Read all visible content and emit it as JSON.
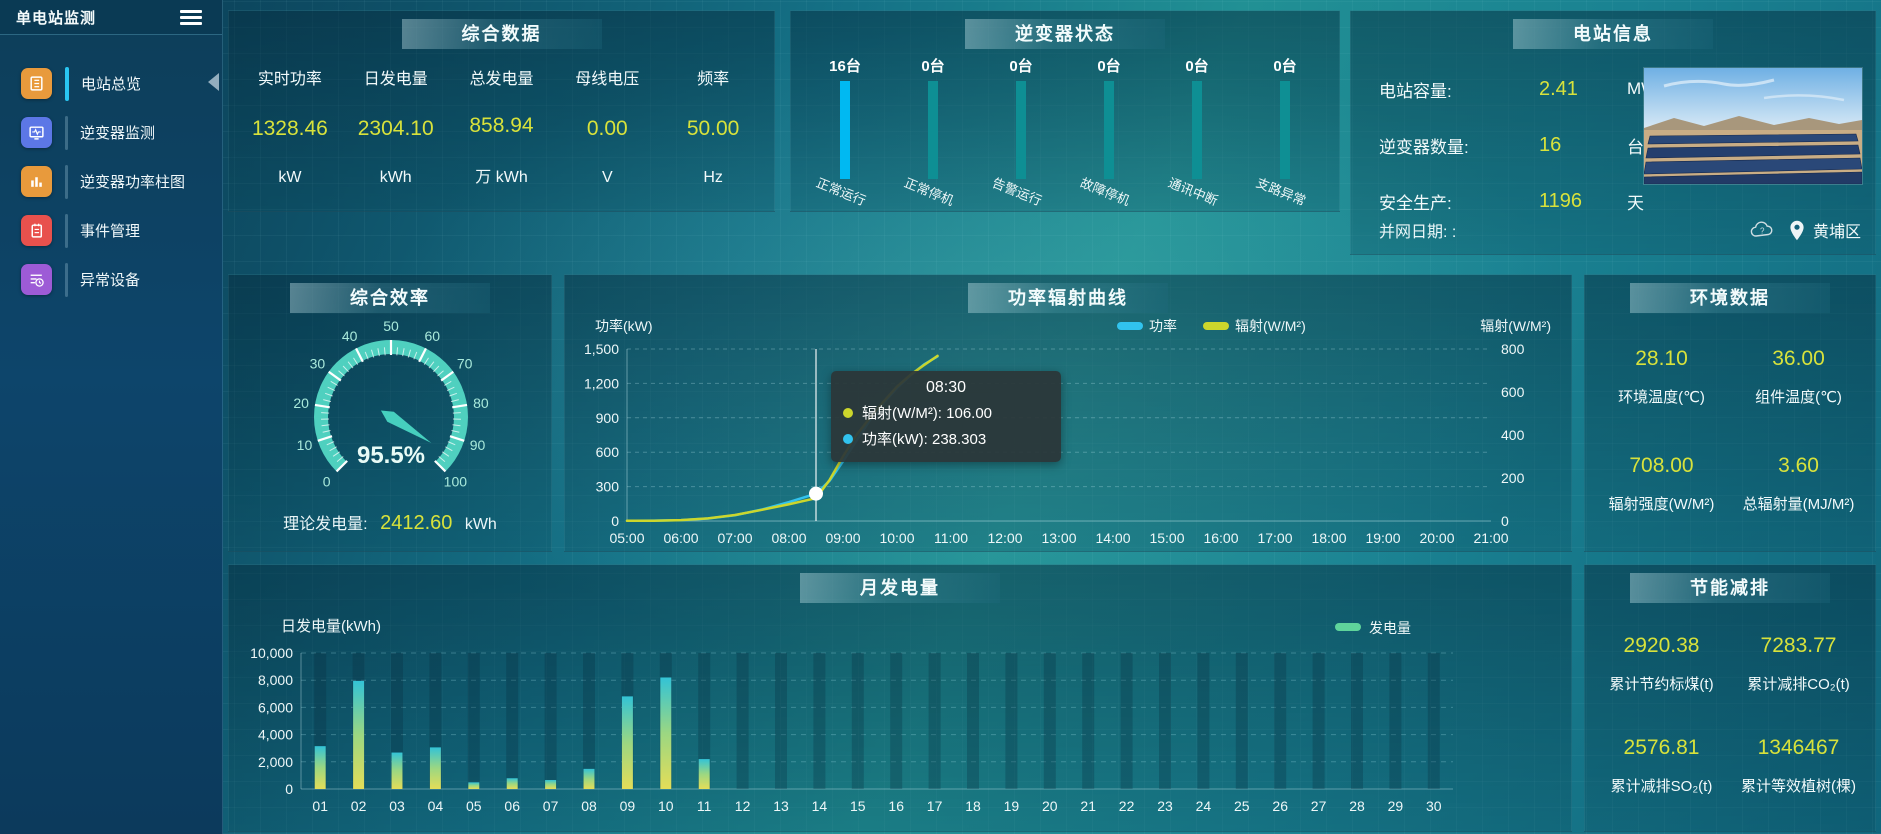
{
  "app": {
    "title": "单电站监测"
  },
  "sidebar": {
    "items": [
      {
        "label": "电站总览",
        "icon": "overview-doc",
        "color": "#e89a3c",
        "active": true
      },
      {
        "label": "逆变器监测",
        "icon": "inverter-monitor",
        "color": "#5c77e6",
        "active": false
      },
      {
        "label": "逆变器功率柱图",
        "icon": "power-bars",
        "color": "#e89a3c",
        "active": false
      },
      {
        "label": "事件管理",
        "icon": "event-notebook",
        "color": "#e8514d",
        "active": false
      },
      {
        "label": "异常设备",
        "icon": "abnormal-list",
        "color": "#9d5bd6",
        "active": false
      }
    ]
  },
  "summary": {
    "title": "综合数据",
    "metrics": [
      {
        "label": "实时功率",
        "value": "1328.46",
        "unit": "kW"
      },
      {
        "label": "日发电量",
        "value": "2304.10",
        "unit": "kWh"
      },
      {
        "label": "总发电量",
        "value": "858.94",
        "unit": "万 kWh"
      },
      {
        "label": "母线电压",
        "value": "0.00",
        "unit": "V"
      },
      {
        "label": "频率",
        "value": "50.00",
        "unit": "Hz"
      }
    ]
  },
  "inverter_status": {
    "title": "逆变器状态",
    "items": [
      {
        "count": "16台",
        "label": "正常运行",
        "highlight": true
      },
      {
        "count": "0台",
        "label": "正常停机",
        "highlight": false
      },
      {
        "count": "0台",
        "label": "告警运行",
        "highlight": false
      },
      {
        "count": "0台",
        "label": "故障停机",
        "highlight": false
      },
      {
        "count": "0台",
        "label": "通讯中断",
        "highlight": false
      },
      {
        "count": "0台",
        "label": "支路异常",
        "highlight": false
      }
    ]
  },
  "station_info": {
    "title": "电站信息",
    "rows": [
      {
        "label": "电站容量:",
        "value": "2.41",
        "unit": "MW"
      },
      {
        "label": "逆变器数量:",
        "value": "16",
        "unit": "台"
      },
      {
        "label": "安全生产:",
        "value": "1196",
        "unit": "天"
      }
    ],
    "grid_date_label": "并网日期:  :",
    "location": "黄埔区"
  },
  "efficiency": {
    "title": "综合效率",
    "footer_label": "理论发电量:",
    "footer_value": "2412.60",
    "footer_unit": "kWh"
  },
  "environment": {
    "title": "环境数据",
    "cells": [
      {
        "value": "28.10",
        "label": "环境温度(℃)"
      },
      {
        "value": "36.00",
        "label": "组件温度(℃)"
      },
      {
        "value": "708.00",
        "label": "辐射强度(W/M²)"
      },
      {
        "value": "3.60",
        "label": "总辐射量(MJ/M²)"
      }
    ]
  },
  "saving": {
    "title": "节能减排",
    "cells": [
      {
        "value": "2920.38",
        "label": "累计节约标煤(t)"
      },
      {
        "value": "7283.77",
        "label": "累计减排CO₂(t)"
      },
      {
        "value": "2576.81",
        "label": "累计减排SO₂(t)"
      },
      {
        "value": "1346467",
        "label": "累计等效植树(棵)"
      }
    ]
  },
  "chart_data": [
    {
      "id": "power_radiation",
      "type": "line",
      "title": "功率辐射曲线",
      "legend": [
        "功率",
        "辐射(W/M²)"
      ],
      "legend_colors": [
        "#31c3ee",
        "#ccd62c"
      ],
      "ylabel_left": "功率(kW)",
      "ylabel_right": "辐射(W/M²)",
      "ylim_left": [
        0,
        1500
      ],
      "ylim_right": [
        0,
        800
      ],
      "yticks_left": [
        0,
        300,
        600,
        900,
        1200,
        1500
      ],
      "ytick_labels_left": [
        "0",
        "300",
        "600",
        "900",
        "1,200",
        "1,500"
      ],
      "yticks_right": [
        0,
        200,
        400,
        600,
        800
      ],
      "ytick_labels_right": [
        "0",
        "200",
        "400",
        "600",
        "800"
      ],
      "x_range": [
        5,
        21
      ],
      "x_ticks": [
        "05:00",
        "06:00",
        "07:00",
        "08:00",
        "09:00",
        "10:00",
        "11:00",
        "12:00",
        "13:00",
        "14:00",
        "15:00",
        "16:00",
        "17:00",
        "18:00",
        "19:00",
        "20:00",
        "21:00"
      ],
      "grid": "dashed",
      "series": [
        {
          "name": "功率",
          "axis": "left",
          "color": "#31c3ee",
          "points": [
            [
              5,
              2
            ],
            [
              5.5,
              3
            ],
            [
              6,
              8
            ],
            [
              6.5,
              22
            ],
            [
              7,
              50
            ],
            [
              7.5,
              100
            ],
            [
              8,
              165
            ],
            [
              8.5,
              238.3
            ],
            [
              8.75,
              350
            ],
            [
              9,
              520
            ],
            [
              9.25,
              700
            ],
            [
              9.5,
              880
            ],
            [
              9.75,
              1030
            ],
            [
              10,
              1160
            ],
            [
              10.25,
              1270
            ],
            [
              10.5,
              1365
            ],
            [
              10.75,
              1435
            ]
          ]
        },
        {
          "name": "辐射(W/M²)",
          "axis": "right",
          "color": "#ccd62c",
          "points": [
            [
              5,
              1
            ],
            [
              5.5,
              1
            ],
            [
              6,
              4
            ],
            [
              6.5,
              12
            ],
            [
              7,
              28
            ],
            [
              7.5,
              52
            ],
            [
              8,
              78
            ],
            [
              8.5,
              106
            ],
            [
              8.75,
              190
            ],
            [
              9,
              300
            ],
            [
              9.25,
              400
            ],
            [
              9.5,
              480
            ],
            [
              9.75,
              555
            ],
            [
              10,
              625
            ],
            [
              10.25,
              680
            ],
            [
              10.5,
              725
            ],
            [
              10.75,
              768
            ]
          ]
        }
      ],
      "tooltip": {
        "x": 8.5,
        "time": "08:30",
        "marker_value": 238.303,
        "rows": [
          {
            "color": "#ccd62c",
            "text": "辐射(W/M²): 106.00"
          },
          {
            "color": "#31c3ee",
            "text": "功率(kW): 238.303"
          }
        ]
      }
    },
    {
      "id": "monthly_generation",
      "type": "bar",
      "title": "月发电量",
      "ylabel": "日发电量(kWh)",
      "ylim": [
        0,
        10000
      ],
      "yticks": [
        0,
        2000,
        4000,
        6000,
        8000,
        10000
      ],
      "ytick_labels": [
        "0",
        "2,000",
        "4,000",
        "6,000",
        "8,000",
        "10,000"
      ],
      "legend": [
        "发电量"
      ],
      "legend_color": "#5fd49b",
      "categories": [
        "01",
        "02",
        "03",
        "04",
        "05",
        "06",
        "07",
        "08",
        "09",
        "10",
        "11",
        "12",
        "13",
        "14",
        "15",
        "16",
        "17",
        "18",
        "19",
        "20",
        "21",
        "22",
        "23",
        "24",
        "25",
        "26",
        "27",
        "28",
        "29",
        "30"
      ],
      "values": [
        3150,
        7950,
        2680,
        3060,
        490,
        790,
        660,
        1480,
        6810,
        8200,
        2200,
        0,
        0,
        0,
        0,
        0,
        0,
        0,
        0,
        0,
        0,
        0,
        0,
        0,
        0,
        0,
        0,
        0,
        0,
        0
      ],
      "bar_gradient": [
        "#e4dd58",
        "#9bd782",
        "#33c3d6"
      ]
    },
    {
      "id": "inverter_status_bars",
      "type": "bar",
      "categories": [
        "正常运行",
        "正常停机",
        "告警运行",
        "故障停机",
        "通讯中断",
        "支路异常"
      ],
      "values": [
        16,
        0,
        0,
        0,
        0,
        0
      ],
      "unit": "台",
      "highlight_color": "#00b9f2",
      "base_color": "#0e8f94"
    },
    {
      "id": "efficiency_gauge",
      "type": "gauge",
      "value": 95.5,
      "display": "95.5%",
      "min": 0,
      "max": 100,
      "tick_labels": [
        "0",
        "10",
        "20",
        "30",
        "40",
        "50",
        "60",
        "70",
        "80",
        "90",
        "100"
      ],
      "color": "#4fd0bf"
    }
  ]
}
